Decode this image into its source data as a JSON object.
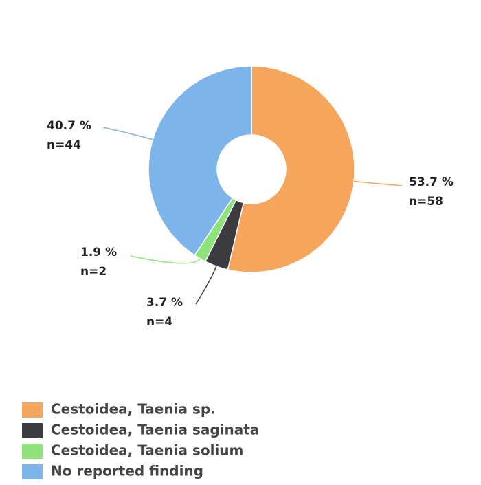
{
  "chart_data": {
    "type": "donut",
    "categories": [
      "Cestoidea, Taenia sp.",
      "Cestoidea, Taenia saginata",
      "Cestoidea, Taenia solium",
      "No reported finding"
    ],
    "values": [
      53.7,
      3.7,
      1.9,
      40.7
    ],
    "value_labels": [
      "53.7 %",
      "3.7 %",
      "1.9 %",
      "40.7 %"
    ],
    "counts": [
      58,
      4,
      2,
      44
    ],
    "count_labels": [
      "n=58",
      "n=4",
      "n=2",
      "n=44"
    ],
    "colors": [
      "#f5a55c",
      "#3b3b40",
      "#8ee27a",
      "#7db4ea"
    ],
    "legend": "bottom-left"
  }
}
